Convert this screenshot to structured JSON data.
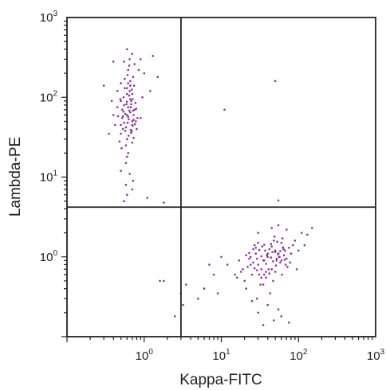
{
  "chart_data": {
    "type": "scatter",
    "xlabel": "Kappa-FITC",
    "ylabel": "Lambda-PE",
    "xscale": "log",
    "yscale": "log",
    "xlim": [
      0.1,
      1000
    ],
    "ylim": [
      0.1,
      1000
    ],
    "grid": false,
    "marker_color": "#8B2FA0",
    "x_ticks": [
      {
        "value": 1,
        "base": "10",
        "exp": "0"
      },
      {
        "value": 10,
        "base": "10",
        "exp": "1"
      },
      {
        "value": 100,
        "base": "10",
        "exp": "2"
      },
      {
        "value": 1000,
        "base": "10",
        "exp": "3"
      }
    ],
    "y_ticks": [
      {
        "value": 1,
        "base": "10",
        "exp": "0"
      },
      {
        "value": 10,
        "base": "10",
        "exp": "1"
      },
      {
        "value": 100,
        "base": "10",
        "exp": "2"
      },
      {
        "value": 1000,
        "base": "10",
        "exp": "3"
      }
    ],
    "gate_lines": {
      "x": 3.0,
      "y": 4.2
    },
    "series": [
      {
        "values": [
          [
            0.6,
            60
          ],
          [
            0.55,
            80
          ],
          [
            0.7,
            45
          ],
          [
            0.65,
            120
          ],
          [
            0.5,
            35
          ],
          [
            0.75,
            70
          ],
          [
            0.62,
            150
          ],
          [
            0.58,
            25
          ],
          [
            0.68,
            90
          ],
          [
            0.52,
            55
          ],
          [
            0.8,
            40
          ],
          [
            0.45,
            75
          ],
          [
            0.72,
            180
          ],
          [
            0.6,
            30
          ],
          [
            0.66,
            65
          ],
          [
            0.54,
            100
          ],
          [
            0.7,
            50
          ],
          [
            0.62,
            20
          ],
          [
            0.77,
            85
          ],
          [
            0.5,
            45
          ],
          [
            0.64,
            250
          ],
          [
            0.56,
            130
          ],
          [
            0.73,
            60
          ],
          [
            0.48,
            28
          ],
          [
            0.69,
            38
          ],
          [
            0.6,
            110
          ],
          [
            0.82,
            55
          ],
          [
            0.52,
            70
          ],
          [
            0.66,
            160
          ],
          [
            0.58,
            42
          ],
          [
            0.71,
            95
          ],
          [
            0.63,
            33
          ],
          [
            0.55,
            48
          ],
          [
            0.74,
            140
          ],
          [
            0.6,
            18
          ],
          [
            0.67,
            75
          ],
          [
            0.5,
            90
          ],
          [
            0.78,
            50
          ],
          [
            0.62,
            220
          ],
          [
            0.57,
            62
          ],
          [
            0.7,
            27
          ],
          [
            0.64,
            105
          ],
          [
            0.53,
            40
          ],
          [
            0.72,
            68
          ],
          [
            0.46,
            58
          ],
          [
            0.61,
            190
          ],
          [
            0.68,
            36
          ],
          [
            0.59,
            82
          ],
          [
            0.76,
            46
          ],
          [
            0.65,
            300
          ],
          [
            0.51,
            23
          ],
          [
            0.69,
            125
          ],
          [
            0.63,
            53
          ],
          [
            0.56,
            170
          ],
          [
            0.73,
            31
          ],
          [
            0.6,
            88
          ],
          [
            0.54,
            66
          ],
          [
            0.71,
            44
          ],
          [
            0.66,
            140
          ],
          [
            0.58,
            15
          ],
          [
            0.79,
            72
          ],
          [
            0.62,
            57
          ],
          [
            0.49,
            95
          ],
          [
            0.67,
            39
          ],
          [
            0.6,
            400
          ],
          [
            0.7,
            350
          ],
          [
            0.55,
            280
          ],
          [
            0.75,
            260
          ],
          [
            0.5,
            12
          ],
          [
            0.65,
            11
          ],
          [
            0.72,
            9
          ],
          [
            0.58,
            8
          ],
          [
            0.35,
            35
          ],
          [
            0.3,
            140
          ],
          [
            0.4,
            280
          ],
          [
            0.9,
            300
          ],
          [
            1.3,
            330
          ],
          [
            1.5,
            180
          ],
          [
            0.85,
            220
          ],
          [
            0.6,
            6
          ],
          [
            0.55,
            5
          ],
          [
            0.7,
            7
          ],
          [
            1.0,
            200
          ],
          [
            1.2,
            120
          ],
          [
            0.45,
            120
          ],
          [
            0.4,
            60
          ],
          [
            0.38,
            90
          ],
          [
            0.95,
            100
          ],
          [
            0.9,
            55
          ],
          [
            0.5,
            150
          ],
          [
            1.8,
            4.8
          ],
          [
            1.1,
            5.5
          ],
          [
            0.42,
            45
          ],
          [
            0.62,
            75
          ],
          [
            0.66,
            95
          ],
          [
            0.57,
            38
          ],
          [
            0.7,
            110
          ],
          [
            0.61,
            48
          ],
          [
            0.64,
            68
          ],
          [
            0.53,
            58
          ],
          [
            0.68,
            82
          ],
          [
            0.6,
            130
          ],
          [
            0.58,
            42
          ],
          [
            0.73,
            52
          ]
        ]
      },
      {
        "values": [
          [
            40,
            1.0
          ],
          [
            30,
            0.8
          ],
          [
            50,
            1.2
          ],
          [
            25,
            0.6
          ],
          [
            60,
            1.5
          ],
          [
            35,
            0.9
          ],
          [
            45,
            0.7
          ],
          [
            20,
            0.5
          ],
          [
            55,
            1.1
          ],
          [
            28,
            1.3
          ],
          [
            70,
            0.95
          ],
          [
            38,
            0.55
          ],
          [
            48,
            1.6
          ],
          [
            22,
            0.75
          ],
          [
            65,
            1.05
          ],
          [
            32,
            0.45
          ],
          [
            42,
            1.25
          ],
          [
            18,
            0.65
          ],
          [
            58,
            0.85
          ],
          [
            27,
            1.4
          ],
          [
            75,
            1.3
          ],
          [
            36,
            0.6
          ],
          [
            52,
            0.9
          ],
          [
            24,
            1.0
          ],
          [
            62,
            1.7
          ],
          [
            33,
            0.7
          ],
          [
            46,
            1.15
          ],
          [
            16,
            0.55
          ],
          [
            68,
            0.8
          ],
          [
            29,
            0.95
          ],
          [
            44,
            1.45
          ],
          [
            21,
            0.4
          ],
          [
            57,
            1.0
          ],
          [
            37,
            1.2
          ],
          [
            50,
            0.65
          ],
          [
            26,
            0.85
          ],
          [
            80,
            1.1
          ],
          [
            34,
            1.35
          ],
          [
            47,
            0.5
          ],
          [
            19,
            0.7
          ],
          [
            64,
            1.25
          ],
          [
            31,
            0.6
          ],
          [
            53,
            1.55
          ],
          [
            23,
            0.95
          ],
          [
            72,
            0.75
          ],
          [
            39,
            1.05
          ],
          [
            43,
            0.35
          ],
          [
            15,
            0.6
          ],
          [
            60,
            0.9
          ],
          [
            28,
            1.1
          ],
          [
            49,
            1.8
          ],
          [
            35,
            0.45
          ],
          [
            85,
            1.4
          ],
          [
            24,
            0.8
          ],
          [
            56,
            1.0
          ],
          [
            30,
            1.5
          ],
          [
            41,
            0.7
          ],
          [
            17,
            0.9
          ],
          [
            67,
            1.2
          ],
          [
            33,
            0.55
          ],
          [
            52,
            0.95
          ],
          [
            26,
            1.25
          ],
          [
            78,
            0.85
          ],
          [
            38,
            0.65
          ],
          [
            45,
            1.35
          ],
          [
            21,
            1.05
          ],
          [
            61,
            0.6
          ],
          [
            29,
            0.3
          ],
          [
            50,
            1.15
          ],
          [
            36,
            0.9
          ],
          [
            90,
            1.6
          ],
          [
            12,
            0.8
          ],
          [
            100,
            1.2
          ],
          [
            110,
            2.0
          ],
          [
            95,
            0.7
          ],
          [
            70,
            2.2
          ],
          [
            25,
            0.28
          ],
          [
            40,
            0.25
          ],
          [
            55,
            0.22
          ],
          [
            30,
            0.2
          ],
          [
            60,
            0.18
          ],
          [
            48,
            0.16
          ],
          [
            35,
            0.14
          ],
          [
            75,
            0.15
          ],
          [
            8,
            0.6
          ],
          [
            10,
            1.0
          ],
          [
            6,
            0.4
          ],
          [
            5,
            0.3
          ],
          [
            9,
            0.35
          ],
          [
            7,
            0.8
          ],
          [
            150,
            2.3
          ],
          [
            130,
            1.9
          ],
          [
            120,
            1.4
          ],
          [
            45,
            2.3
          ],
          [
            30,
            2.0
          ],
          [
            55,
            2.5
          ],
          [
            40,
            1.1
          ],
          [
            47,
            0.88
          ],
          [
            33,
            1.02
          ],
          [
            58,
            1.18
          ],
          [
            27,
            0.72
          ],
          [
            42,
            0.62
          ],
          [
            36,
            1.42
          ],
          [
            63,
            1.32
          ],
          [
            23,
            1.12
          ],
          [
            51,
            0.78
          ],
          [
            44,
            0.98
          ],
          [
            38,
            0.82
          ],
          [
            54,
            1.08
          ],
          [
            31,
            1.22
          ],
          [
            66,
            0.92
          ],
          [
            29,
            0.68
          ],
          [
            1.6,
            0.5
          ],
          [
            1.8,
            0.5
          ],
          [
            3.0,
            0.35
          ],
          [
            2.5,
            0.18
          ],
          [
            3.2,
            0.25
          ],
          [
            3.5,
            0.45
          ]
        ]
      },
      {
        "values": [
          [
            11,
            70
          ],
          [
            50,
            160
          ],
          [
            55,
            5.1
          ]
        ]
      }
    ]
  }
}
